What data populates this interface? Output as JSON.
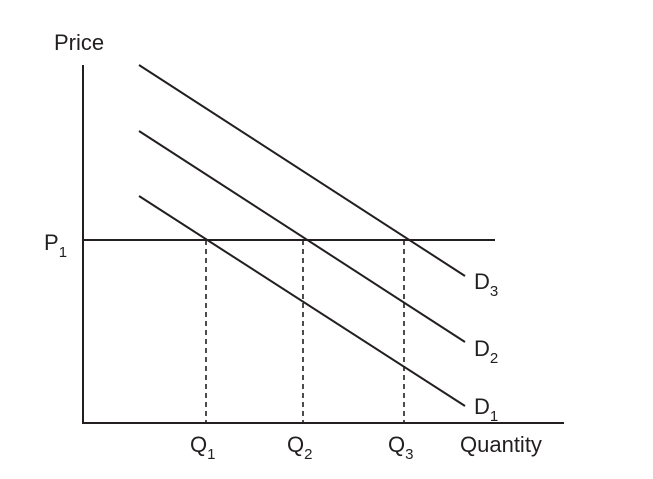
{
  "chart_data": {
    "type": "line",
    "xlabel": "Quantity",
    "ylabel": "Price",
    "price_level": {
      "base": "P",
      "sub": "1"
    },
    "quantities": [
      {
        "base": "Q",
        "sub": "1"
      },
      {
        "base": "Q",
        "sub": "2"
      },
      {
        "base": "Q",
        "sub": "3"
      }
    ],
    "demand_curves": [
      {
        "base": "D",
        "sub": "1"
      },
      {
        "base": "D",
        "sub": "2"
      },
      {
        "base": "D",
        "sub": "3"
      }
    ]
  }
}
